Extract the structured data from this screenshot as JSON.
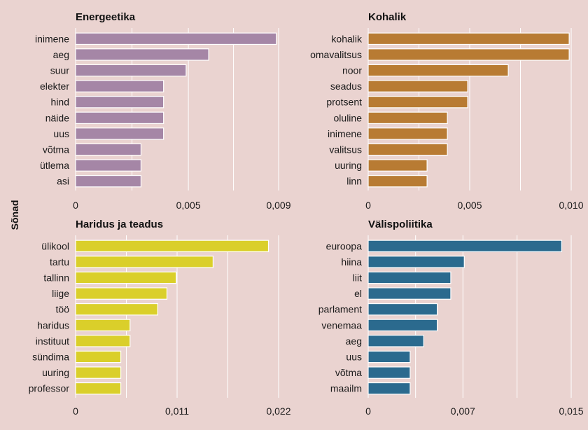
{
  "ylabel": "Sõnad",
  "chart_data": [
    {
      "type": "bar",
      "orientation": "horizontal",
      "title": "Energeetika",
      "color": "#a586a6",
      "categories": [
        "inimene",
        "aeg",
        "suur",
        "elekter",
        "hind",
        "näide",
        "uus",
        "võtma",
        "ütlema",
        "asi"
      ],
      "values": [
        0.0089,
        0.0059,
        0.0049,
        0.0039,
        0.0039,
        0.0039,
        0.0039,
        0.0029,
        0.0029,
        0.0029
      ],
      "xlim": [
        0,
        0.009
      ],
      "ticks": [
        0,
        0.005,
        0.009
      ],
      "tick_labels": [
        "0",
        "0,005",
        "0,009"
      ],
      "grid": true
    },
    {
      "type": "bar",
      "orientation": "horizontal",
      "title": "Kohalik",
      "color": "#b87b33",
      "categories": [
        "kohalik",
        "omavalitsus",
        "noor",
        "seadus",
        "protsent",
        "oluline",
        "inimene",
        "valitsus",
        "uuring",
        "linn"
      ],
      "values": [
        0.0099,
        0.0099,
        0.0069,
        0.0049,
        0.0049,
        0.0039,
        0.0039,
        0.0039,
        0.0029,
        0.0029
      ],
      "xlim": [
        0,
        0.01
      ],
      "ticks": [
        0,
        0.005,
        0.01
      ],
      "tick_labels": [
        "0",
        "0,005",
        "0,010"
      ],
      "grid": true
    },
    {
      "type": "bar",
      "orientation": "horizontal",
      "title": "Haridus ja teadus",
      "color": "#dacf2a",
      "categories": [
        "ülikool",
        "tartu",
        "tallinn",
        "liige",
        "töö",
        "haridus",
        "instituut",
        "sündima",
        "uuring",
        "professor"
      ],
      "values": [
        0.0209,
        0.0149,
        0.0109,
        0.0099,
        0.0089,
        0.0059,
        0.0059,
        0.0049,
        0.0049,
        0.0049
      ],
      "xlim": [
        0,
        0.022
      ],
      "ticks": [
        0,
        0.011,
        0.022
      ],
      "tick_labels": [
        "0",
        "0,011",
        "0,022"
      ],
      "grid": true
    },
    {
      "type": "bar",
      "orientation": "horizontal",
      "title": "Välispoliitika",
      "color": "#2b6a8e",
      "categories": [
        "euroopa",
        "hiina",
        "liit",
        "el",
        "parlament",
        "venemaa",
        "aeg",
        "uus",
        "võtma",
        "maailm"
      ],
      "values": [
        0.0143,
        0.0071,
        0.0061,
        0.0061,
        0.0051,
        0.0051,
        0.0041,
        0.0031,
        0.0031,
        0.0031
      ],
      "xlim": [
        0,
        0.015
      ],
      "ticks": [
        0,
        0.007,
        0.015
      ],
      "tick_labels": [
        "0",
        "0,007",
        "0,015"
      ],
      "grid": true
    }
  ]
}
